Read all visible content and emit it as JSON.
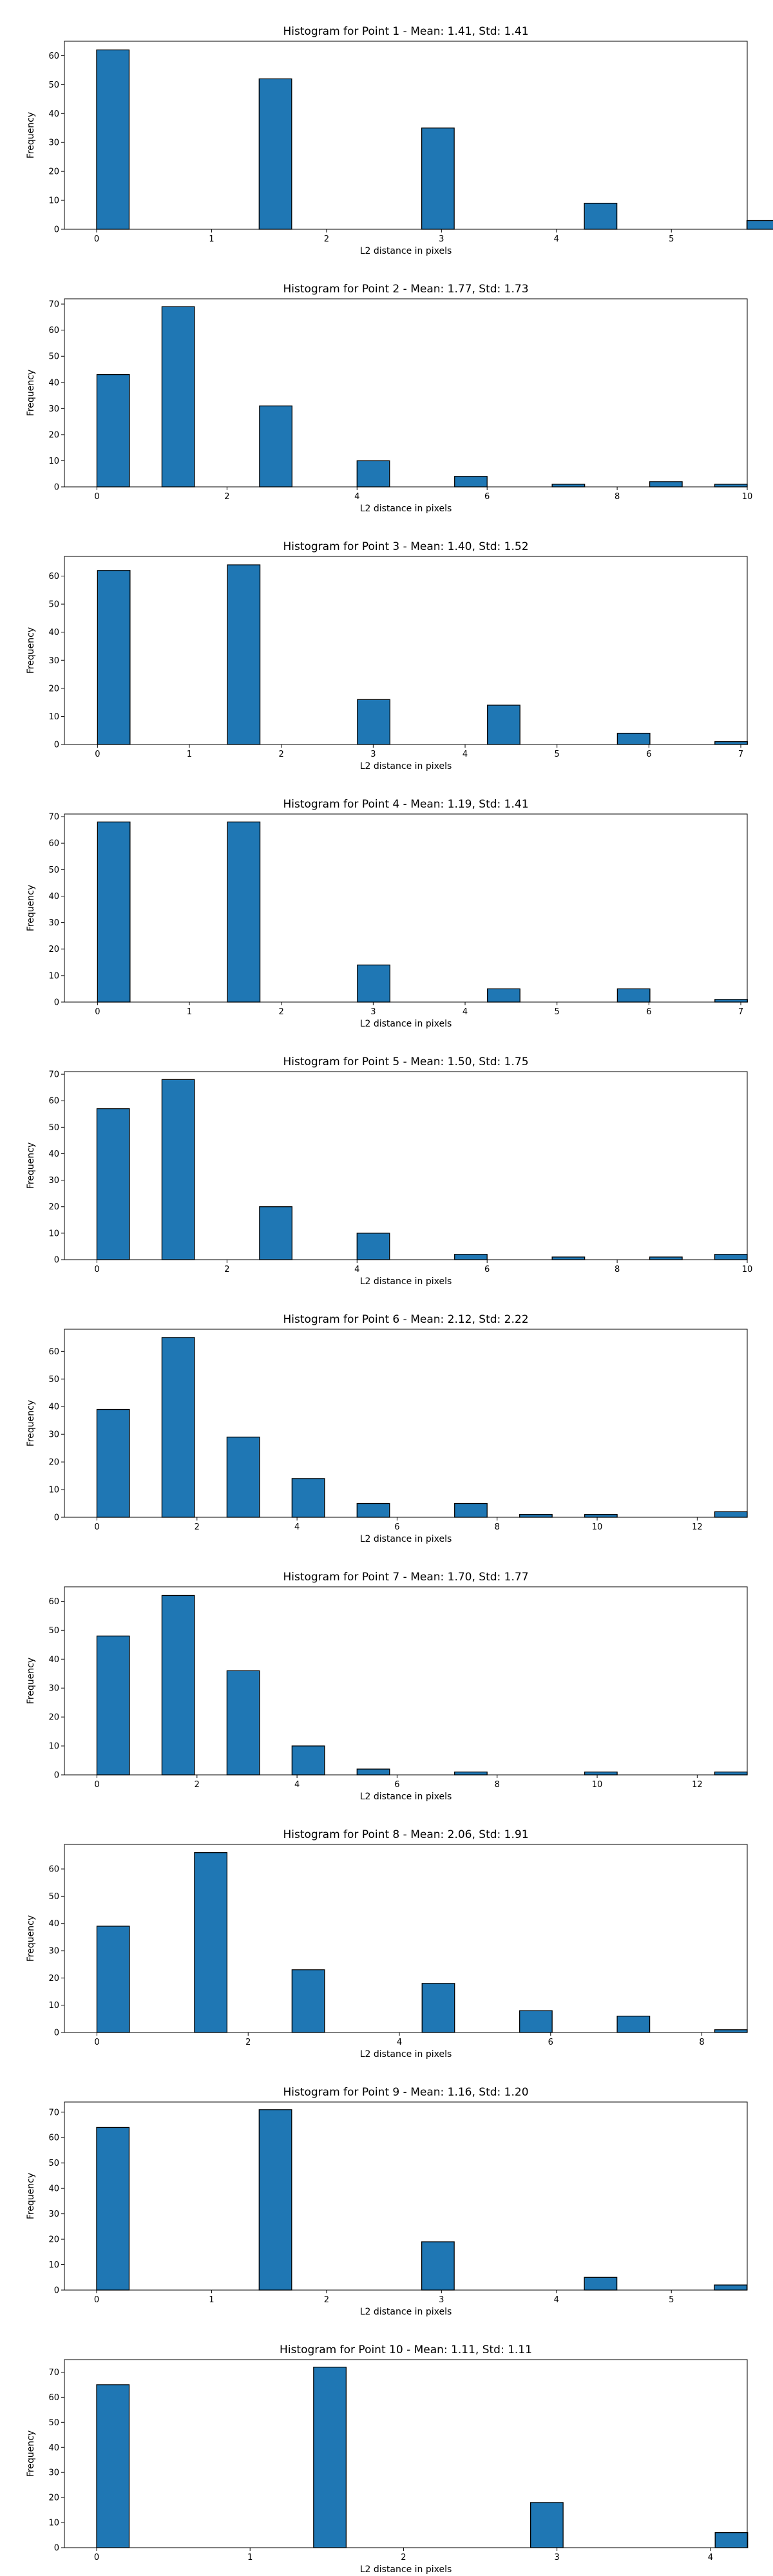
{
  "chart_data": [
    {
      "type": "bar",
      "title": "Histogram for Point 1 - Mean: 1.41, Std: 1.41",
      "xlabel": "L2 distance in pixels",
      "ylabel": "Frequency",
      "xlim": [
        -0.28,
        5.66
      ],
      "ylim": [
        0,
        65
      ],
      "xticks": [
        0,
        1,
        2,
        3,
        4,
        5
      ],
      "yticks": [
        0,
        10,
        20,
        30,
        40,
        50,
        60
      ],
      "bar_width": 0.283,
      "bars": [
        {
          "x": 0.0,
          "value": 62
        },
        {
          "x": 1.414,
          "value": 52
        },
        {
          "x": 2.828,
          "value": 35
        },
        {
          "x": 4.243,
          "value": 9
        },
        {
          "x": 5.657,
          "value": 3
        }
      ]
    },
    {
      "type": "bar",
      "title": "Histogram for Point 2 - Mean: 1.77, Std: 1.73",
      "xlabel": "L2 distance in pixels",
      "ylabel": "Frequency",
      "xlim": [
        -0.5,
        10.0
      ],
      "ylim": [
        0,
        72
      ],
      "xticks": [
        0,
        2,
        4,
        6,
        8,
        10
      ],
      "yticks": [
        0,
        10,
        20,
        30,
        40,
        50,
        60,
        70
      ],
      "bar_width": 0.5,
      "bars": [
        {
          "x": 0.0,
          "value": 43
        },
        {
          "x": 1.0,
          "value": 69
        },
        {
          "x": 2.5,
          "value": 31
        },
        {
          "x": 4.0,
          "value": 10
        },
        {
          "x": 5.5,
          "value": 4
        },
        {
          "x": 7.0,
          "value": 1
        },
        {
          "x": 8.5,
          "value": 2
        },
        {
          "x": 9.5,
          "value": 1
        }
      ]
    },
    {
      "type": "bar",
      "title": "Histogram for Point 3 - Mean: 1.40, Std: 1.52",
      "xlabel": "L2 distance in pixels",
      "ylabel": "Frequency",
      "xlim": [
        -0.36,
        7.07
      ],
      "ylim": [
        0,
        67
      ],
      "xticks": [
        0,
        1,
        2,
        3,
        4,
        5,
        6,
        7
      ],
      "yticks": [
        0,
        10,
        20,
        30,
        40,
        50,
        60
      ],
      "bar_width": 0.354,
      "bars": [
        {
          "x": 0.0,
          "value": 62
        },
        {
          "x": 1.414,
          "value": 64
        },
        {
          "x": 2.828,
          "value": 16
        },
        {
          "x": 4.243,
          "value": 14
        },
        {
          "x": 5.657,
          "value": 4
        },
        {
          "x": 6.718,
          "value": 1
        }
      ]
    },
    {
      "type": "bar",
      "title": "Histogram for Point 4 - Mean: 1.19, Std: 1.41",
      "xlabel": "L2 distance in pixels",
      "ylabel": "Frequency",
      "xlim": [
        -0.36,
        7.07
      ],
      "ylim": [
        0,
        71
      ],
      "xticks": [
        0,
        1,
        2,
        3,
        4,
        5,
        6,
        7
      ],
      "yticks": [
        0,
        10,
        20,
        30,
        40,
        50,
        60,
        70
      ],
      "bar_width": 0.354,
      "bars": [
        {
          "x": 0.0,
          "value": 68
        },
        {
          "x": 1.414,
          "value": 68
        },
        {
          "x": 2.828,
          "value": 14
        },
        {
          "x": 4.243,
          "value": 5
        },
        {
          "x": 5.657,
          "value": 5
        },
        {
          "x": 6.718,
          "value": 1
        }
      ]
    },
    {
      "type": "bar",
      "title": "Histogram for Point 5 - Mean: 1.50, Std: 1.75",
      "xlabel": "L2 distance in pixels",
      "ylabel": "Frequency",
      "xlim": [
        -0.5,
        10.0
      ],
      "ylim": [
        0,
        71
      ],
      "xticks": [
        0,
        2,
        4,
        6,
        8,
        10
      ],
      "yticks": [
        0,
        10,
        20,
        30,
        40,
        50,
        60,
        70
      ],
      "bar_width": 0.5,
      "bars": [
        {
          "x": 0.0,
          "value": 57
        },
        {
          "x": 1.0,
          "value": 68
        },
        {
          "x": 2.5,
          "value": 20
        },
        {
          "x": 4.0,
          "value": 10
        },
        {
          "x": 5.5,
          "value": 2
        },
        {
          "x": 7.0,
          "value": 1
        },
        {
          "x": 8.5,
          "value": 1
        },
        {
          "x": 9.5,
          "value": 2
        }
      ]
    },
    {
      "type": "bar",
      "title": "Histogram for Point 6 - Mean: 2.12, Std: 2.22",
      "xlabel": "L2 distance in pixels",
      "ylabel": "Frequency",
      "xlim": [
        -0.65,
        13.0
      ],
      "ylim": [
        0,
        68
      ],
      "xticks": [
        0,
        2,
        4,
        6,
        8,
        10,
        12
      ],
      "yticks": [
        0,
        10,
        20,
        30,
        40,
        50,
        60
      ],
      "bar_width": 0.65,
      "bars": [
        {
          "x": 0.0,
          "value": 39
        },
        {
          "x": 1.3,
          "value": 65
        },
        {
          "x": 2.6,
          "value": 29
        },
        {
          "x": 3.9,
          "value": 14
        },
        {
          "x": 5.2,
          "value": 5
        },
        {
          "x": 6.5,
          "value": 0
        },
        {
          "x": 7.15,
          "value": 5
        },
        {
          "x": 8.45,
          "value": 1
        },
        {
          "x": 9.75,
          "value": 1
        },
        {
          "x": 12.35,
          "value": 2
        }
      ]
    },
    {
      "type": "bar",
      "title": "Histogram for Point 7 - Mean: 1.70, Std: 1.77",
      "xlabel": "L2 distance in pixels",
      "ylabel": "Frequency",
      "xlim": [
        -0.65,
        13.0
      ],
      "ylim": [
        0,
        65
      ],
      "xticks": [
        0,
        2,
        4,
        6,
        8,
        10,
        12
      ],
      "yticks": [
        0,
        10,
        20,
        30,
        40,
        50,
        60
      ],
      "bar_width": 0.65,
      "bars": [
        {
          "x": 0.0,
          "value": 48
        },
        {
          "x": 1.3,
          "value": 62
        },
        {
          "x": 2.6,
          "value": 36
        },
        {
          "x": 3.9,
          "value": 10
        },
        {
          "x": 5.2,
          "value": 2
        },
        {
          "x": 7.15,
          "value": 1
        },
        {
          "x": 9.75,
          "value": 1
        },
        {
          "x": 12.35,
          "value": 1
        }
      ]
    },
    {
      "type": "bar",
      "title": "Histogram for Point 8 - Mean: 2.06, Std: 1.91",
      "xlabel": "L2 distance in pixels",
      "ylabel": "Frequency",
      "xlim": [
        -0.43,
        8.6
      ],
      "ylim": [
        0,
        69
      ],
      "xticks": [
        0,
        2,
        4,
        6,
        8
      ],
      "yticks": [
        0,
        10,
        20,
        30,
        40,
        50,
        60
      ],
      "bar_width": 0.43,
      "bars": [
        {
          "x": 0.0,
          "value": 39
        },
        {
          "x": 1.29,
          "value": 66
        },
        {
          "x": 2.58,
          "value": 23
        },
        {
          "x": 4.3,
          "value": 18
        },
        {
          "x": 5.59,
          "value": 8
        },
        {
          "x": 6.88,
          "value": 6
        },
        {
          "x": 8.17,
          "value": 1
        }
      ]
    },
    {
      "type": "bar",
      "title": "Histogram for Point 9 - Mean: 1.16, Std: 1.20",
      "xlabel": "L2 distance in pixels",
      "ylabel": "Frequency",
      "xlim": [
        -0.28,
        5.66
      ],
      "ylim": [
        0,
        74
      ],
      "xticks": [
        0,
        1,
        2,
        3,
        4,
        5
      ],
      "yticks": [
        0,
        10,
        20,
        30,
        40,
        50,
        60,
        70
      ],
      "bar_width": 0.283,
      "bars": [
        {
          "x": 0.0,
          "value": 64
        },
        {
          "x": 1.414,
          "value": 71
        },
        {
          "x": 2.828,
          "value": 19
        },
        {
          "x": 4.243,
          "value": 5
        },
        {
          "x": 5.374,
          "value": 2
        }
      ]
    },
    {
      "type": "bar",
      "title": "Histogram for Point 10 - Mean: 1.11, Std: 1.11",
      "xlabel": "L2 distance in pixels",
      "ylabel": "Frequency",
      "xlim": [
        -0.21,
        4.24
      ],
      "ylim": [
        0,
        75
      ],
      "xticks": [
        0,
        1,
        2,
        3,
        4
      ],
      "yticks": [
        0,
        10,
        20,
        30,
        40,
        50,
        60,
        70
      ],
      "bar_width": 0.212,
      "bars": [
        {
          "x": 0.0,
          "value": 65
        },
        {
          "x": 1.414,
          "value": 72
        },
        {
          "x": 2.828,
          "value": 18
        },
        {
          "x": 4.031,
          "value": 6
        }
      ]
    }
  ]
}
